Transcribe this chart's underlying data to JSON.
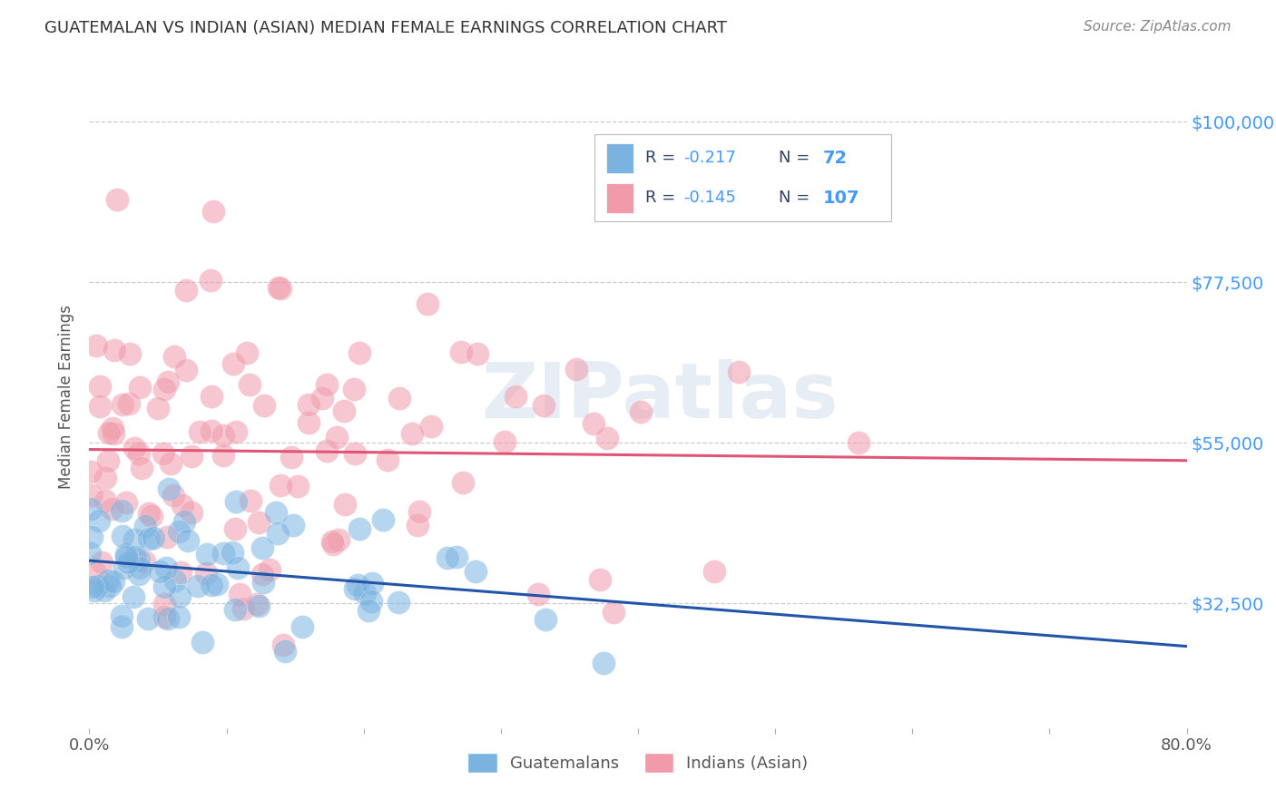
{
  "title": "GUATEMALAN VS INDIAN (ASIAN) MEDIAN FEMALE EARNINGS CORRELATION CHART",
  "source": "Source: ZipAtlas.com",
  "ylabel": "Median Female Earnings",
  "xlim": [
    0.0,
    0.8
  ],
  "ylim": [
    15000,
    108000
  ],
  "yticks": [
    32500,
    55000,
    77500,
    100000
  ],
  "ytick_labels": [
    "$32,500",
    "$55,000",
    "$77,500",
    "$100,000"
  ],
  "background_color": "#ffffff",
  "grid_color": "#cccccc",
  "watermark_text": "ZIPatlas",
  "blue_scatter": "#7ab3e0",
  "pink_scatter": "#f09aaa",
  "line_blue": "#2255aa",
  "line_pink": "#e05575",
  "title_color": "#333333",
  "right_tick_color": "#4499ff",
  "legend_text_dark": "#334466",
  "legend_value_blue": "#4499ff",
  "seed": 42,
  "n_guat": 72,
  "n_indian": 107,
  "guat_line_y0": 37500,
  "guat_line_y1": 28000,
  "indian_line_y0": 55000,
  "indian_line_y1": 48000
}
